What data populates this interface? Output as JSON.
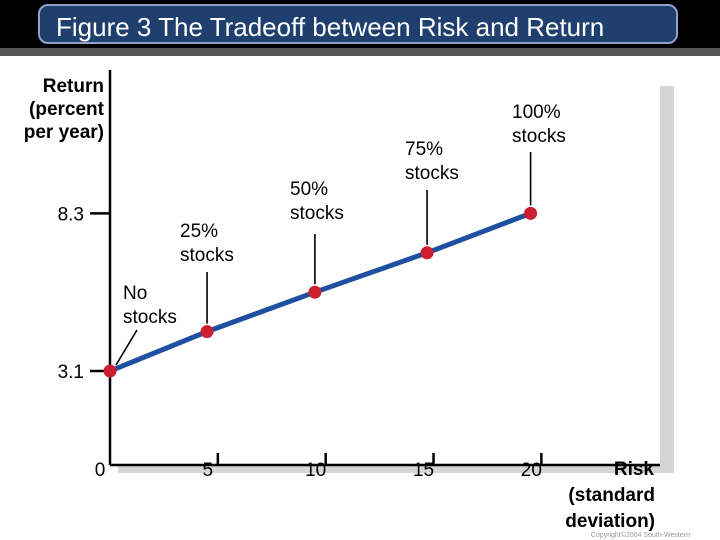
{
  "slide": {
    "title": "Figure 3 The Tradeoff between Risk and Return",
    "copyright": "Copyright©2004 South-Western"
  },
  "chart_data": {
    "type": "line",
    "title": "",
    "ylabel_lines": [
      "Return",
      "(percent",
      "per year)"
    ],
    "xlabel_lines": [
      "Risk",
      "(standard",
      "deviation)"
    ],
    "x_ticks": [
      0,
      5,
      10,
      15,
      20
    ],
    "x_tick_labels": [
      "0",
      "5",
      "10",
      "15",
      "20"
    ],
    "y_ticks": [
      3.1,
      8.3
    ],
    "y_tick_labels": [
      "3.1",
      "8.3"
    ],
    "xlim": [
      0,
      25.5
    ],
    "ylim": [
      0,
      12.7
    ],
    "grid": false,
    "points": [
      {
        "x": 0,
        "y": 3.1,
        "label_lines": [
          "No",
          "stocks"
        ]
      },
      {
        "x": 4.5,
        "y": 4.4,
        "label_lines": [
          "25%",
          "stocks"
        ]
      },
      {
        "x": 9.5,
        "y": 5.7,
        "label_lines": [
          "50%",
          "stocks"
        ]
      },
      {
        "x": 14.7,
        "y": 7.0,
        "label_lines": [
          "75%",
          "stocks"
        ]
      },
      {
        "x": 19.5,
        "y": 8.3,
        "label_lines": [
          "100%",
          "stocks"
        ]
      }
    ],
    "colors": {
      "line": "#1f4fa0",
      "marker": "#cc1f2e",
      "axis": "#000000",
      "plot_background": "#ffffff",
      "panel_shadow": "#d6d6d6"
    }
  }
}
